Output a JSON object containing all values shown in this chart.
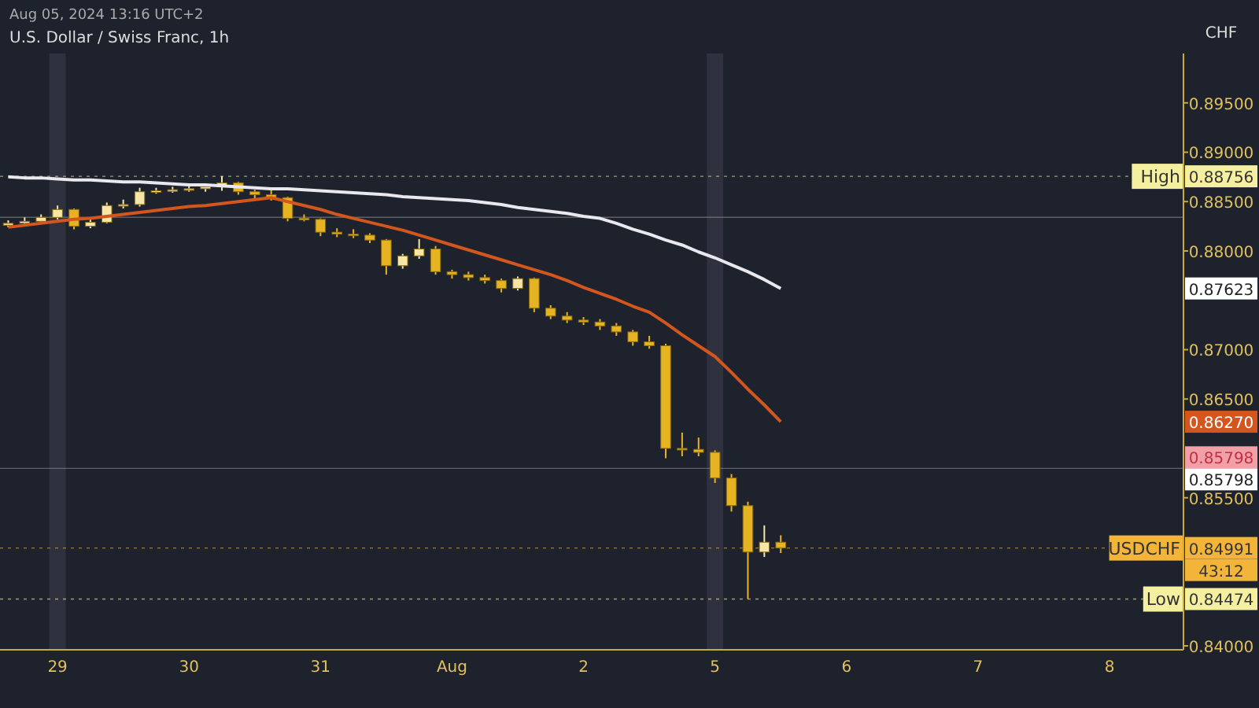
{
  "chart_data": {
    "type": "candlestick",
    "title": "U.S. Dollar / Swiss Franc, 1h",
    "subtitle": "Aug 05, 2024 13:16 UTC+2",
    "ylabel": "CHF",
    "categories": [
      null,
      null,
      null,
      "29",
      null,
      null,
      null,
      null,
      null,
      null,
      null,
      "30",
      null,
      null,
      null,
      null,
      null,
      null,
      null,
      "31",
      null,
      null,
      null,
      null,
      null,
      null,
      null,
      "Aug",
      null,
      null,
      null,
      null,
      null,
      null,
      null,
      "2",
      null,
      null,
      null,
      null,
      null,
      null,
      null,
      "5",
      null,
      null,
      null,
      null,
      null,
      null,
      null,
      "6",
      null,
      null,
      null,
      null,
      null,
      null,
      null,
      "7",
      null,
      null,
      null,
      null,
      null,
      null,
      null,
      "8",
      null,
      null,
      null,
      null
    ],
    "ohlc": [
      [
        0.8826,
        0.8831,
        0.8824,
        0.8828
      ],
      [
        0.8828,
        0.8834,
        0.8826,
        0.883
      ],
      [
        0.883,
        0.8837,
        0.8828,
        0.8834
      ],
      [
        0.8834,
        0.8846,
        0.8832,
        0.8842
      ],
      [
        0.8842,
        0.8843,
        0.8822,
        0.8825
      ],
      [
        0.8825,
        0.8833,
        0.8823,
        0.8829
      ],
      [
        0.8829,
        0.8849,
        0.8828,
        0.8846
      ],
      [
        0.8846,
        0.8852,
        0.8843,
        0.8847
      ],
      [
        0.8847,
        0.8864,
        0.8845,
        0.886
      ],
      [
        0.886,
        0.8864,
        0.8858,
        0.8861
      ],
      [
        0.8861,
        0.8865,
        0.8859,
        0.8862
      ],
      [
        0.8862,
        0.8866,
        0.886,
        0.8863
      ],
      [
        0.8863,
        0.8867,
        0.886,
        0.8865
      ],
      [
        0.8865,
        0.88756,
        0.8861,
        0.8869
      ],
      [
        0.8869,
        0.887,
        0.8857,
        0.886
      ],
      [
        0.886,
        0.8862,
        0.8853,
        0.8857
      ],
      [
        0.8857,
        0.8862,
        0.8851,
        0.8854
      ],
      [
        0.8854,
        0.8855,
        0.883,
        0.8833
      ],
      [
        0.8833,
        0.8837,
        0.883,
        0.8832
      ],
      [
        0.8832,
        0.8833,
        0.8815,
        0.8819
      ],
      [
        0.8819,
        0.8823,
        0.8814,
        0.8817
      ],
      [
        0.8817,
        0.8822,
        0.8813,
        0.8816
      ],
      [
        0.8816,
        0.8818,
        0.8808,
        0.8811
      ],
      [
        0.8811,
        0.8812,
        0.8776,
        0.8785
      ],
      [
        0.8785,
        0.8797,
        0.8782,
        0.8795
      ],
      [
        0.8795,
        0.8812,
        0.8792,
        0.8802
      ],
      [
        0.8802,
        0.8805,
        0.8776,
        0.8779
      ],
      [
        0.8779,
        0.8781,
        0.8772,
        0.8776
      ],
      [
        0.8776,
        0.8779,
        0.877,
        0.8773
      ],
      [
        0.8773,
        0.8776,
        0.8767,
        0.877
      ],
      [
        0.877,
        0.8772,
        0.8758,
        0.8762
      ],
      [
        0.8762,
        0.8774,
        0.876,
        0.8772
      ],
      [
        0.8772,
        0.8773,
        0.8738,
        0.8742
      ],
      [
        0.8742,
        0.8745,
        0.8731,
        0.8734
      ],
      [
        0.8734,
        0.8738,
        0.8727,
        0.873
      ],
      [
        0.873,
        0.8733,
        0.8725,
        0.8728
      ],
      [
        0.8728,
        0.8731,
        0.872,
        0.8724
      ],
      [
        0.8724,
        0.8727,
        0.8714,
        0.8718
      ],
      [
        0.8718,
        0.872,
        0.8704,
        0.8708
      ],
      [
        0.8708,
        0.8714,
        0.8701,
        0.8704
      ],
      [
        0.8704,
        0.8706,
        0.859,
        0.86
      ],
      [
        0.86,
        0.8616,
        0.8592,
        0.8599
      ],
      [
        0.8599,
        0.8611,
        0.8592,
        0.8596
      ],
      [
        0.8596,
        0.8598,
        0.8565,
        0.857
      ],
      [
        0.857,
        0.8574,
        0.8536,
        0.8542
      ],
      [
        0.8542,
        0.8546,
        0.84474,
        0.8495
      ],
      [
        0.8495,
        0.8522,
        0.849,
        0.8505
      ],
      [
        0.8505,
        0.8512,
        0.8494,
        0.84991
      ],
      null,
      null,
      null,
      null,
      null,
      null,
      null,
      null,
      null,
      null,
      null,
      null,
      null,
      null,
      null,
      null,
      null,
      null,
      null,
      null,
      null,
      null,
      null,
      null
    ],
    "colors": [
      "#f7e7a6",
      "#f7e7a6",
      "#f7e7a6",
      "#f7e7a6",
      "#e6b422",
      "#f7e7a6",
      "#f7e7a6",
      "#f7e7a6",
      "#f7e7a6",
      "#f7e7a6",
      "#f7e7a6",
      "#f7e7a6",
      "#f7e7a6",
      "#f7e7a6",
      "#e6b422",
      "#e6b422",
      "#e6b422",
      "#e6b422",
      "#e6b422",
      "#e6b422",
      "#e6b422",
      "#e6b422",
      "#e6b422",
      "#e6b422",
      "#f7e7a6",
      "#f7e7a6",
      "#e6b422",
      "#e6b422",
      "#e6b422",
      "#e6b422",
      "#e6b422",
      "#f7e7a6",
      "#e6b422",
      "#e6b422",
      "#e6b422",
      "#e6b422",
      "#e6b422",
      "#e6b422",
      "#e6b422",
      "#e6b422",
      "#e6b422",
      "#e6b422",
      "#e6b422",
      "#e6b422",
      "#e6b422",
      "#e6b422",
      "#f7e7a6",
      "#e6b422",
      null,
      null,
      null,
      null,
      null,
      null,
      null,
      null,
      null,
      null,
      null,
      null,
      null,
      null,
      null,
      null,
      null,
      null,
      null,
      null,
      null,
      null,
      null,
      null
    ],
    "series": [
      {
        "type": "line",
        "color": "#e8e8ee",
        "values": [
          0.8875,
          0.8874,
          0.8874,
          0.8873,
          0.8872,
          0.8872,
          0.8871,
          0.887,
          0.887,
          0.8869,
          0.8868,
          0.8867,
          0.8867,
          0.8866,
          0.8865,
          0.8864,
          0.8863,
          0.8863,
          0.8862,
          0.8861,
          0.886,
          0.8859,
          0.8858,
          0.8857,
          0.8855,
          0.8854,
          0.8853,
          0.8852,
          0.8851,
          0.8849,
          0.8847,
          0.8844,
          0.8842,
          0.884,
          0.8838,
          0.8835,
          0.8833,
          0.8828,
          0.8822,
          0.8817,
          0.8811,
          0.8806,
          0.8799,
          0.8793,
          0.8786,
          0.8779,
          0.8771,
          0.8762,
          null,
          null,
          null,
          null,
          null,
          null,
          null,
          null,
          null,
          null,
          null,
          null,
          null,
          null,
          null,
          null,
          null,
          null,
          null,
          null,
          null,
          null,
          null,
          null
        ]
      },
      {
        "type": "line",
        "color": "#d2561e",
        "values": [
          0.8824,
          0.8826,
          0.8828,
          0.883,
          0.8832,
          0.8833,
          0.8835,
          0.8837,
          0.8839,
          0.8841,
          0.8843,
          0.8845,
          0.8846,
          0.8848,
          0.885,
          0.8852,
          0.8854,
          0.885,
          0.8846,
          0.8842,
          0.8837,
          0.8833,
          0.8829,
          0.8825,
          0.8821,
          0.8816,
          0.8811,
          0.8806,
          0.8801,
          0.8796,
          0.8791,
          0.8786,
          0.8781,
          0.8776,
          0.877,
          0.8763,
          0.8757,
          0.8751,
          0.8744,
          0.8738,
          0.8727,
          0.8715,
          0.8704,
          0.8693,
          0.8677,
          0.866,
          0.8644,
          0.8627,
          null,
          null,
          null,
          null,
          null,
          null,
          null,
          null,
          null,
          null,
          null,
          null,
          null,
          null,
          null,
          null,
          null,
          null,
          null,
          null,
          null,
          null,
          null,
          null
        ]
      }
    ],
    "ylim": [
      0.8396,
      0.9
    ],
    "yticks": [
      {
        "value": 0.84,
        "label": "0.84000"
      },
      {
        "value": 0.855,
        "label": "0.85500"
      },
      {
        "value": 0.865,
        "label": "0.86500"
      },
      {
        "value": 0.87,
        "label": "0.87000"
      },
      {
        "value": 0.88,
        "label": "0.88000"
      },
      {
        "value": 0.885,
        "label": "0.88500"
      },
      {
        "value": 0.89,
        "label": "0.89000"
      },
      {
        "value": 0.895,
        "label": "0.89500"
      }
    ],
    "ref_lines": [
      {
        "axis": "y",
        "value": 0.88756,
        "label": "High",
        "color": "#f5f0a0",
        "line_style": "dotted"
      },
      {
        "axis": "y",
        "value": 0.84474,
        "label": "Low",
        "color": "#f5f0a0",
        "line_style": "dotted"
      },
      {
        "axis": "y",
        "value": 0.84991,
        "label": "USDCHF",
        "color": "#f2b53a",
        "line_style": "dotted"
      },
      {
        "axis": "y",
        "value": 0.8834,
        "color": "#8a8a90",
        "line_style": "solid"
      },
      {
        "axis": "y",
        "value": 0.85798,
        "color": "#8a8a90",
        "line_style": "solid"
      }
    ],
    "bands": [
      {
        "axis": "x",
        "from": "29",
        "to": "29",
        "color": "#3a3e4a"
      },
      {
        "axis": "x",
        "from": "5",
        "to": "5",
        "color": "#3a3e4a"
      }
    ],
    "annotations": [
      "0.88756",
      "0.87623",
      "0.86270",
      "0.85798",
      "0.85798",
      "0.84991",
      "43:12",
      "0.84474"
    ]
  }
}
